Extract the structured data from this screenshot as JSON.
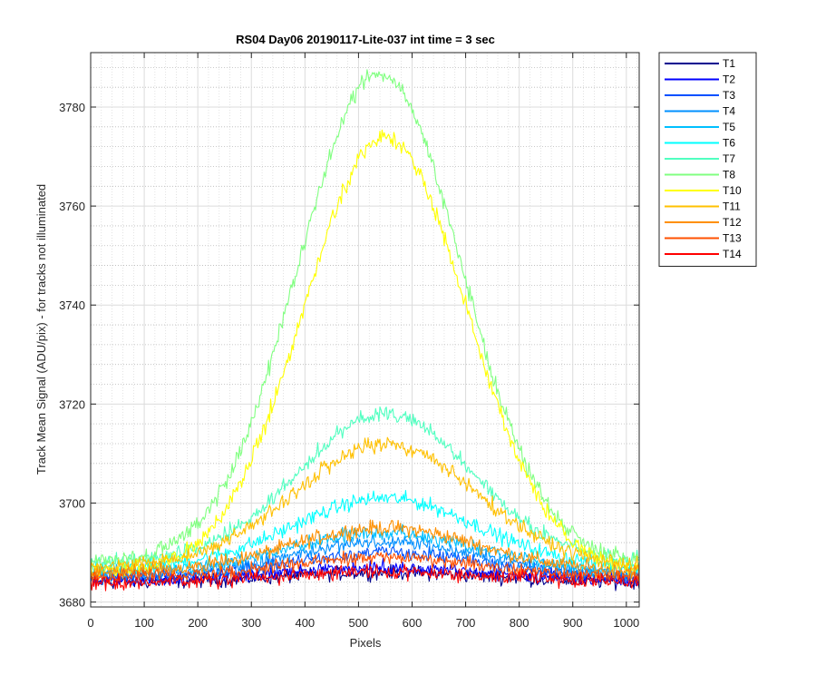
{
  "chart_data": {
    "type": "line",
    "title": "RS04 Day06 20190117-Lite-037 int time = 3 sec",
    "xlabel": "Pixels",
    "ylabel": "Track Mean Signal (ADU/pix) - for tracks not illuminated",
    "xlim": [
      0,
      1024
    ],
    "ylim": [
      3679,
      3791
    ],
    "xticks": [
      0,
      100,
      200,
      300,
      400,
      500,
      600,
      700,
      800,
      900,
      1000
    ],
    "yticks": [
      3680,
      3700,
      3720,
      3740,
      3760,
      3780
    ],
    "grid": "major-solid-minor-dotted",
    "legend_placement": "outside-right",
    "series": [
      {
        "name": "T1",
        "color": "#00008f",
        "base": 3684.0,
        "peak": 3686.0,
        "center": 550,
        "width": 260,
        "noise": 1.4
      },
      {
        "name": "T2",
        "color": "#0000ff",
        "base": 3684.5,
        "peak": 3687.0,
        "center": 550,
        "width": 260,
        "noise": 1.4
      },
      {
        "name": "T3",
        "color": "#0050ff",
        "base": 3685.0,
        "peak": 3690.0,
        "center": 550,
        "width": 250,
        "noise": 1.4
      },
      {
        "name": "T4",
        "color": "#0090ff",
        "base": 3685.5,
        "peak": 3692.0,
        "center": 550,
        "width": 250,
        "noise": 1.4
      },
      {
        "name": "T5",
        "color": "#00c0ff",
        "base": 3686.0,
        "peak": 3694.0,
        "center": 550,
        "width": 250,
        "noise": 1.4
      },
      {
        "name": "T6",
        "color": "#00ffff",
        "base": 3687.0,
        "peak": 3701.0,
        "center": 550,
        "width": 240,
        "noise": 1.5
      },
      {
        "name": "T7",
        "color": "#50ffc0",
        "base": 3688.0,
        "peak": 3718.0,
        "center": 550,
        "width": 230,
        "noise": 1.5
      },
      {
        "name": "T8",
        "color": "#80ff80",
        "base": 3688.0,
        "peak": 3787.0,
        "center": 540,
        "width": 215,
        "noise": 1.7
      },
      {
        "name": "T10",
        "color": "#ffff00",
        "base": 3686.0,
        "peak": 3774.0,
        "center": 550,
        "width": 215,
        "noise": 1.7
      },
      {
        "name": "T11",
        "color": "#ffc000",
        "base": 3687.0,
        "peak": 3712.0,
        "center": 550,
        "width": 240,
        "noise": 1.5
      },
      {
        "name": "T12",
        "color": "#ff9000",
        "base": 3686.0,
        "peak": 3695.0,
        "center": 550,
        "width": 250,
        "noise": 1.5
      },
      {
        "name": "T13",
        "color": "#ff5000",
        "base": 3685.0,
        "peak": 3689.0,
        "center": 550,
        "width": 260,
        "noise": 1.4
      },
      {
        "name": "T14",
        "color": "#ff0000",
        "base": 3684.0,
        "peak": 3686.0,
        "center": 550,
        "width": 260,
        "noise": 1.4
      }
    ]
  }
}
